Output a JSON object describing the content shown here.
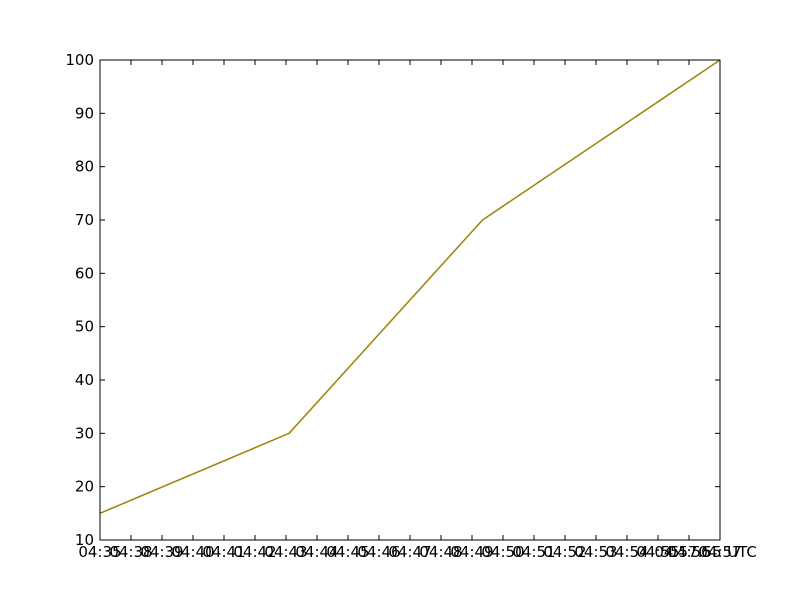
{
  "chart_data": {
    "type": "line",
    "title": "",
    "xlabel": "",
    "ylabel": "",
    "ylim": [
      10,
      100
    ],
    "grid": false,
    "legend": "none",
    "y_ticks": [
      "10",
      "20",
      "30",
      "40",
      "50",
      "60",
      "70",
      "80",
      "90",
      "100"
    ],
    "x_tick_labels": [
      "04:35",
      "04:38",
      "04:39",
      "04:40",
      "04:41",
      "04:42",
      "04:43",
      "04:44",
      "04:45",
      "04:46",
      "04:47",
      "04:48",
      "04:49",
      "04:50",
      "04:51",
      "04:52",
      "04:53",
      "04:54",
      "04:55",
      "04:56",
      "04:57",
      "04:57:55",
      "UTC"
    ],
    "series": [
      {
        "color": "#b8860b",
        "points": [
          {
            "x": 0.0,
            "y": 15
          },
          {
            "x": 0.305,
            "y": 30
          },
          {
            "x": 0.617,
            "y": 70
          },
          {
            "x": 1.0,
            "y": 100
          }
        ]
      }
    ]
  }
}
